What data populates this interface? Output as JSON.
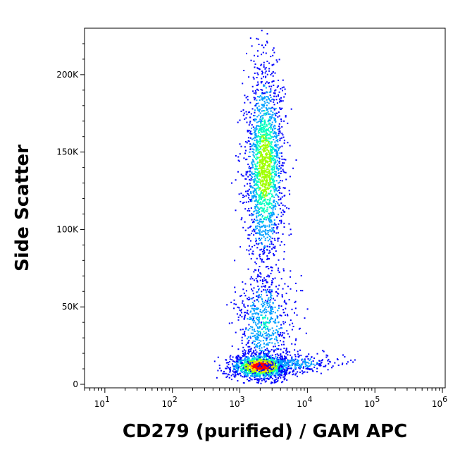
{
  "chart_data": {
    "type": "scatter",
    "subtype": "flow-cytometry-density-dot-plot",
    "title": "",
    "xlabel": "CD279 (purified) / GAM APC",
    "ylabel": "Side Scatter",
    "x_scale": "log",
    "xlim": [
      5,
      1100000
    ],
    "ylim": [
      0,
      230000
    ],
    "x_ticks": [
      {
        "value": 10,
        "label_base": "10",
        "label_exp": "1"
      },
      {
        "value": 100,
        "label_base": "10",
        "label_exp": "2"
      },
      {
        "value": 1000,
        "label_base": "10",
        "label_exp": "3"
      },
      {
        "value": 10000,
        "label_base": "10",
        "label_exp": "4"
      },
      {
        "value": 100000,
        "label_base": "10",
        "label_exp": "5"
      },
      {
        "value": 1000000,
        "label_base": "10",
        "label_exp": "6"
      }
    ],
    "y_ticks": [
      {
        "value": 0,
        "label": "0"
      },
      {
        "value": 50000,
        "label": "50K"
      },
      {
        "value": 100000,
        "label": "100K"
      },
      {
        "value": 150000,
        "label": "150K"
      },
      {
        "value": 200000,
        "label": "200K"
      }
    ],
    "grid": false,
    "colormap": [
      "#0000ff",
      "#00a0ff",
      "#00ffc0",
      "#a0ff00",
      "#ffd000",
      "#ff0000"
    ],
    "populations": [
      {
        "name": "",
        "x_center": 2000,
        "y_center": 12000,
        "x_log_spread": 0.22,
        "y_spread": 4000,
        "events": 1400,
        "peak_density": 1.0
      },
      {
        "name": "",
        "x_center": 2200,
        "y_center": 40000,
        "x_log_spread": 0.2,
        "y_spread": 18000,
        "events": 650,
        "peak_density": 0.3
      },
      {
        "name": "",
        "x_center": 2300,
        "y_center": 140000,
        "x_log_spread": 0.14,
        "y_spread": 32000,
        "events": 1900,
        "peak_density": 0.6
      },
      {
        "name": "",
        "x_center": 7000,
        "y_center": 14000,
        "x_log_spread": 0.3,
        "y_spread": 3000,
        "events": 260,
        "peak_density": 0.25
      }
    ]
  }
}
